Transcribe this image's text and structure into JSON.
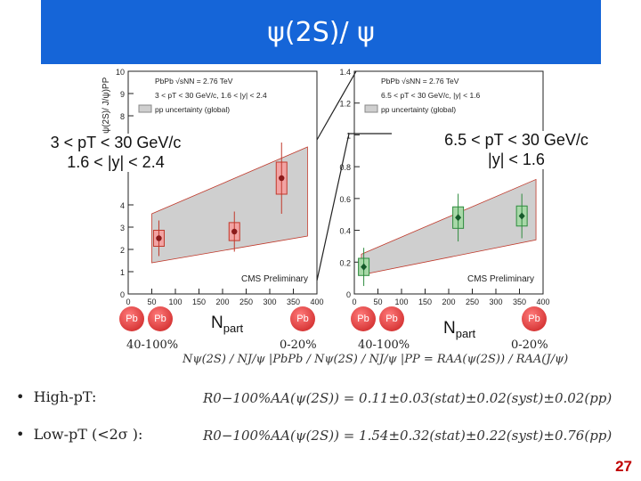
{
  "title": "ψ(2S)/ ψ",
  "left_panel": {
    "ylabel": "(ψ(2S)/ J/ψ)PP",
    "legend": [
      "PbPb √sNN = 2.76 TeV",
      "3 < pT < 30 GeV/c, 1.6 < |y| < 2.4",
      "pp uncertainty (global)"
    ],
    "overlay_line1": "3 < pT < 30 GeV/c",
    "overlay_line2": "1.6 < |y| < 2.4",
    "preliminary": "CMS Preliminary",
    "y_ticks": [
      "0",
      "1",
      "2",
      "3",
      "4",
      "8",
      "9",
      "10"
    ],
    "x_ticks": [
      "0",
      "50",
      "100",
      "150",
      "200",
      "250",
      "300",
      "350",
      "400"
    ],
    "centrality_left": "40-100%",
    "centrality_right": "0-20%"
  },
  "right_panel": {
    "legend": [
      "PbPb √sNN = 2.76 TeV",
      "6.5 < pT < 30 GeV/c, |y| < 1.6",
      "pp uncertainty (global)"
    ],
    "overlay_line1": "6.5 < pT < 30 GeV/c",
    "overlay_line2": "|y| < 1.6",
    "preliminary": "CMS Preliminary",
    "y_ticks": [
      "0",
      "0.2",
      "0.4",
      "0.6",
      "0.8",
      "1",
      "1.2",
      "1.4"
    ],
    "x_ticks": [
      "0",
      "50",
      "100",
      "150",
      "200",
      "250",
      "300",
      "350",
      "400"
    ],
    "centrality_left": "40-100%",
    "centrality_right": "0-20%"
  },
  "npart_label": "N",
  "npart_sub": "part",
  "pb_labels": [
    "Pb",
    "Pb",
    "Pb",
    "Pb",
    "Pb",
    "Pb"
  ],
  "ratio_formula": "Nψ(2S) / NJ/ψ |PbPb  /  Nψ(2S) / NJ/ψ |PP  =  RAA(ψ(2S)) / RAA(J/ψ)",
  "bullets": {
    "high_pt": "High-pT:",
    "low_pt": "Low-pT (<2σ ):"
  },
  "results": {
    "high_pt": "R0−100%AA(ψ(2S)) = 0.11±0.03(stat)±0.02(syst)±0.02(pp)",
    "low_pt": "R0−100%AA(ψ(2S)) = 1.54±0.32(stat)±0.22(syst)±0.76(pp)"
  },
  "page_number": "27",
  "chart_data": [
    {
      "type": "scatter",
      "title": "3 < pT < 30 GeV/c, 1.6 < |y| < 2.4",
      "xlabel": "Npart",
      "ylabel": "(ψ(2S)/J/ψ)PbPb / (ψ(2S)/J/ψ)PP",
      "xlim": [
        0,
        400
      ],
      "ylim": [
        0,
        10
      ],
      "series": [
        {
          "name": "PbPb",
          "x": [
            65,
            225,
            325
          ],
          "y": [
            2.5,
            2.8,
            5.2
          ],
          "err": [
            0.8,
            0.9,
            1.6
          ]
        }
      ],
      "pp_band": {
        "x": [
          50,
          380
        ],
        "low": [
          1.4,
          2.6
        ],
        "high": [
          3.6,
          6.6
        ]
      }
    },
    {
      "type": "scatter",
      "title": "6.5 < pT < 30 GeV/c, |y| < 1.6",
      "xlabel": "Npart",
      "ylabel": "",
      "xlim": [
        0,
        400
      ],
      "ylim": [
        0,
        1.4
      ],
      "series": [
        {
          "name": "PbPb",
          "x": [
            20,
            220,
            355
          ],
          "y": [
            0.17,
            0.48,
            0.49
          ],
          "err": [
            0.12,
            0.15,
            0.14
          ]
        }
      ],
      "pp_band": {
        "x": [
          15,
          385
        ],
        "low": [
          0.12,
          0.34
        ],
        "high": [
          0.25,
          0.72
        ]
      }
    }
  ]
}
